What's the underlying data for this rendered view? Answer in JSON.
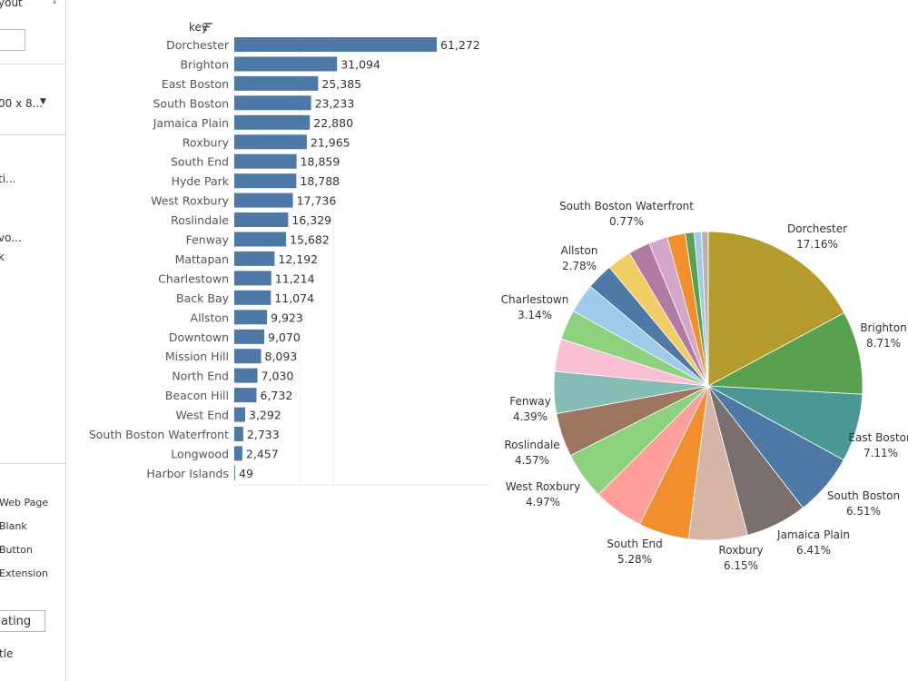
{
  "sidebar": {
    "layout_label": "yout",
    "size_label": "00 x 8...",
    "item_a": "ti...",
    "item_b": "vo...",
    "item_c": "k",
    "objects": [
      "Web Page",
      "Blank",
      "Button",
      "Extension"
    ],
    "floating_label": "ating",
    "title_label": "tle"
  },
  "chart_data": [
    {
      "type": "bar",
      "title": "key",
      "orientation": "horizontal",
      "sorted": "descending",
      "categories": [
        "Dorchester",
        "Brighton",
        "East Boston",
        "South Boston",
        "Jamaica Plain",
        "Roxbury",
        "South End",
        "Hyde Park",
        "West Roxbury",
        "Roslindale",
        "Fenway",
        "Mattapan",
        "Charlestown",
        "Back Bay",
        "Allston",
        "Downtown",
        "Mission Hill",
        "North End",
        "Beacon Hill",
        "West End",
        "South Boston Waterfront",
        "Longwood",
        "Harbor Islands"
      ],
      "values": [
        61272,
        31094,
        25385,
        23233,
        22880,
        21965,
        18859,
        18788,
        17736,
        16329,
        15682,
        12192,
        11214,
        11074,
        9923,
        9070,
        8093,
        7030,
        6732,
        3292,
        2733,
        2457,
        49
      ],
      "value_labels": [
        "61,272",
        "31,094",
        "25,385",
        "23,233",
        "22,880",
        "21,965",
        "18,859",
        "18,788",
        "17,736",
        "16,329",
        "15,682",
        "12,192",
        "11,214",
        "11,074",
        "9,923",
        "9,070",
        "8,093",
        "7,030",
        "6,732",
        "3,292",
        "2,733",
        "2,457",
        "49"
      ],
      "bar_color": "#4e79a7",
      "grid": true
    },
    {
      "type": "pie",
      "slices": [
        {
          "name": "Dorchester",
          "value": 17.16,
          "label": "17.16%",
          "color": "#b59a2c",
          "labeled": true
        },
        {
          "name": "Brighton",
          "value": 8.71,
          "label": "8.71%",
          "color": "#59a14f",
          "labeled": true
        },
        {
          "name": "East Boston",
          "value": 7.11,
          "label": "7.11%",
          "color": "#499894",
          "labeled": true
        },
        {
          "name": "South Boston",
          "value": 6.51,
          "label": "6.51%",
          "color": "#4e79a7",
          "labeled": true
        },
        {
          "name": "Jamaica Plain",
          "value": 6.41,
          "label": "6.41%",
          "color": "#79706e",
          "labeled": true
        },
        {
          "name": "Roxbury",
          "value": 6.15,
          "label": "6.15%",
          "color": "#d7b5a6",
          "labeled": true
        },
        {
          "name": "South End",
          "value": 5.28,
          "label": "5.28%",
          "color": "#f28e2b",
          "labeled": true
        },
        {
          "name": "Hyde Park",
          "value": 5.26,
          "label": "",
          "color": "#ff9d9a",
          "labeled": false
        },
        {
          "name": "West Roxbury",
          "value": 4.97,
          "label": "4.97%",
          "color": "#8cd17d",
          "labeled": true
        },
        {
          "name": "Roslindale",
          "value": 4.57,
          "label": "4.57%",
          "color": "#9d7660",
          "labeled": true
        },
        {
          "name": "Fenway",
          "value": 4.39,
          "label": "4.39%",
          "color": "#86bcb6",
          "labeled": true
        },
        {
          "name": "Mattapan",
          "value": 3.42,
          "label": "",
          "color": "#fabfd2",
          "labeled": false
        },
        {
          "name": "Charlestown",
          "value": 3.14,
          "label": "3.14%",
          "color": "#8cd17d",
          "labeled": true
        },
        {
          "name": "Back Bay",
          "value": 3.1,
          "label": "",
          "color": "#a0cbe8",
          "labeled": false
        },
        {
          "name": "Allston",
          "value": 2.78,
          "label": "2.78%",
          "color": "#4e79a7",
          "labeled": true
        },
        {
          "name": "Downtown",
          "value": 2.54,
          "label": "",
          "color": "#f1ce63",
          "labeled": false
        },
        {
          "name": "Mission Hill",
          "value": 2.27,
          "label": "",
          "color": "#b07aa1",
          "labeled": false
        },
        {
          "name": "North End",
          "value": 1.97,
          "label": "",
          "color": "#d4a6c8",
          "labeled": false
        },
        {
          "name": "Beacon Hill",
          "value": 1.89,
          "label": "",
          "color": "#f28e2b",
          "labeled": false
        },
        {
          "name": "West End",
          "value": 0.92,
          "label": "",
          "color": "#59a14f",
          "labeled": false
        },
        {
          "name": "South Boston Waterfront",
          "value": 0.77,
          "label": "0.77%",
          "color": "#a0cbe8",
          "labeled": true
        },
        {
          "name": "Longwood",
          "value": 0.69,
          "label": "",
          "color": "#bab0ac",
          "labeled": false
        },
        {
          "name": "Harbor Islands",
          "value": 0.01,
          "label": "",
          "color": "#cccccc",
          "labeled": false
        }
      ]
    }
  ]
}
